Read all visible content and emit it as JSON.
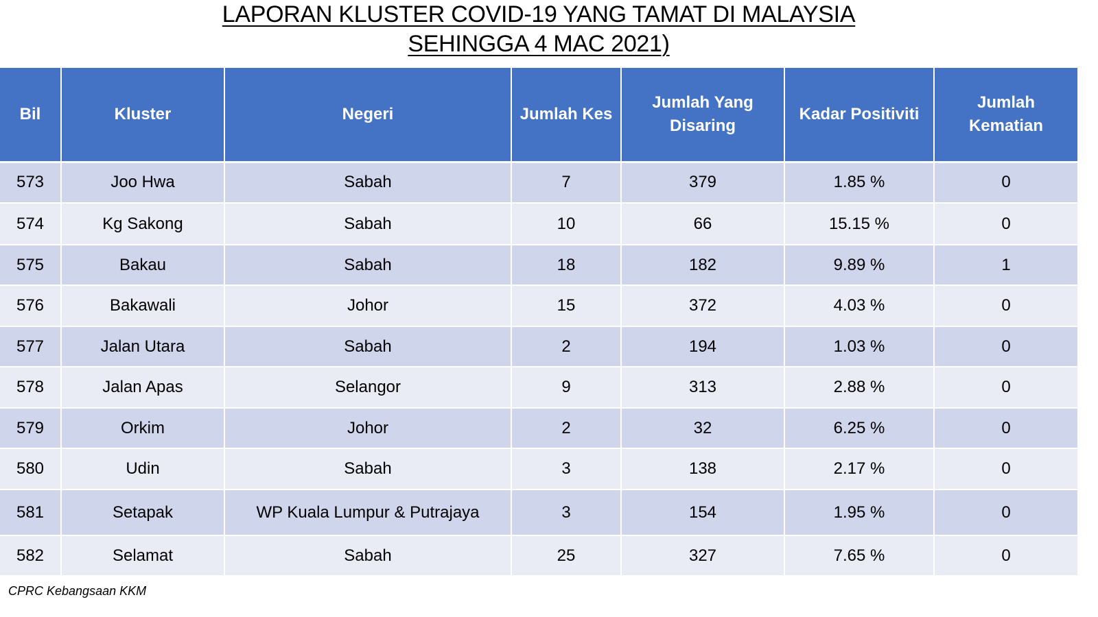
{
  "title": {
    "line1": "LAPORAN KLUSTER COVID-19 YANG TAMAT DI MALAYSIA",
    "line2": "SEHINGGA 4 MAC 2021)"
  },
  "table": {
    "headers": {
      "bil": "Bil",
      "kluster": "Kluster",
      "negeri": "Negeri",
      "jumlah_kes": "Jumlah Kes",
      "jumlah_disaring": "Jumlah Yang Disaring",
      "kadar_positiviti": "Kadar Positiviti",
      "jumlah_kematian": "Jumlah Kematian"
    },
    "rows": [
      {
        "bil": "573",
        "kluster": "Joo Hwa",
        "negeri": "Sabah",
        "kes": "7",
        "disaring": "379",
        "kadar": "1.85 %",
        "kematian": "0"
      },
      {
        "bil": "574",
        "kluster": "Kg Sakong",
        "negeri": "Sabah",
        "kes": "10",
        "disaring": "66",
        "kadar": "15.15 %",
        "kematian": "0"
      },
      {
        "bil": "575",
        "kluster": "Bakau",
        "negeri": "Sabah",
        "kes": "18",
        "disaring": "182",
        "kadar": "9.89 %",
        "kematian": "1"
      },
      {
        "bil": "576",
        "kluster": "Bakawali",
        "negeri": "Johor",
        "kes": "15",
        "disaring": "372",
        "kadar": "4.03 %",
        "kematian": "0"
      },
      {
        "bil": "577",
        "kluster": "Jalan Utara",
        "negeri": "Sabah",
        "kes": "2",
        "disaring": "194",
        "kadar": "1.03 %",
        "kematian": "0"
      },
      {
        "bil": "578",
        "kluster": "Jalan Apas",
        "negeri": "Selangor",
        "kes": "9",
        "disaring": "313",
        "kadar": "2.88 %",
        "kematian": "0"
      },
      {
        "bil": "579",
        "kluster": "Orkim",
        "negeri": "Johor",
        "kes": "2",
        "disaring": "32",
        "kadar": "6.25 %",
        "kematian": "0"
      },
      {
        "bil": "580",
        "kluster": "Udin",
        "negeri": "Sabah",
        "kes": "3",
        "disaring": "138",
        "kadar": "2.17 %",
        "kematian": "0"
      },
      {
        "bil": "581",
        "kluster": "Setapak",
        "negeri": "WP Kuala Lumpur & Putrajaya",
        "kes": "3",
        "disaring": "154",
        "kadar": "1.95 %",
        "kematian": "0"
      },
      {
        "bil": "582",
        "kluster": "Selamat",
        "negeri": "Sabah",
        "kes": "25",
        "disaring": "327",
        "kadar": "7.65 %",
        "kematian": "0"
      }
    ]
  },
  "footer": {
    "source": "CPRC Kebangsaan KKM"
  },
  "colors": {
    "header_bg": "#4472c4",
    "row_dark": "#cfd5ea",
    "row_light": "#e9ebf5"
  }
}
